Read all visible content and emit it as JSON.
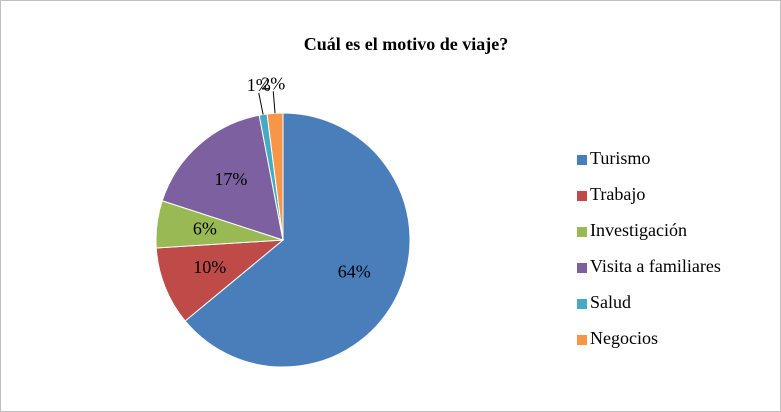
{
  "chart_data": {
    "type": "pie",
    "title": "Cuál es el motivo de viaje?",
    "categories": [
      "Turismo",
      "Trabajo",
      "Investigación",
      "Visita a familiares",
      "Salud",
      "Negocios"
    ],
    "values": [
      64,
      10,
      6,
      17,
      1,
      2
    ],
    "value_labels": [
      "64%",
      "10%",
      "6%",
      "17%",
      "1%",
      "2%"
    ],
    "colors": [
      "#4a7ebb",
      "#be4b48",
      "#98b954",
      "#7d60a0",
      "#46aac5",
      "#f79646"
    ],
    "legend": "right"
  }
}
